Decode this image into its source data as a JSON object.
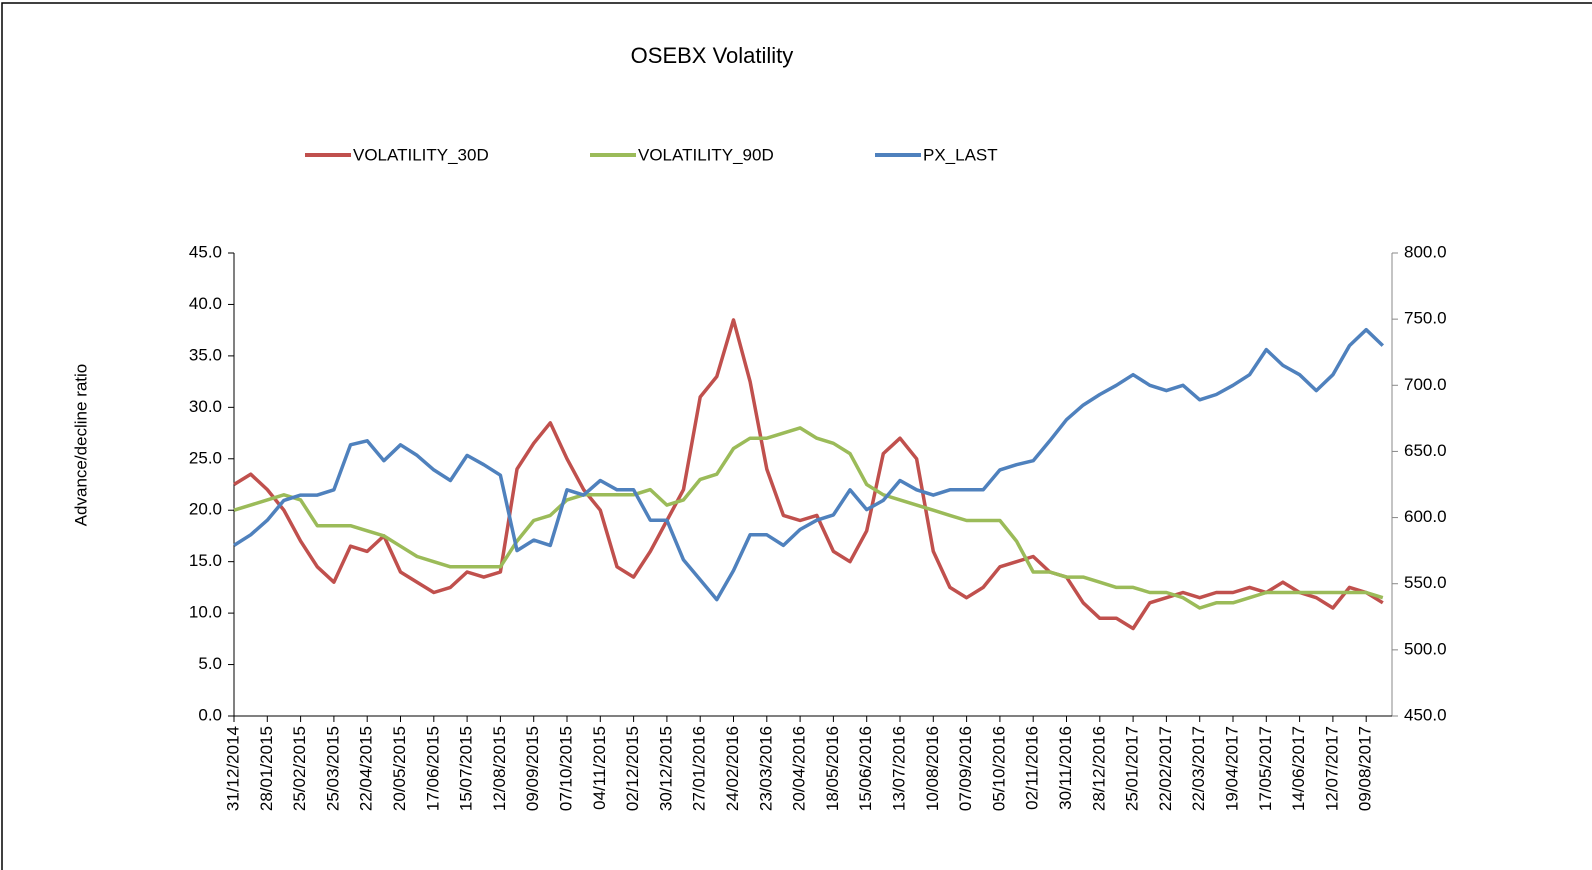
{
  "chart_data": {
    "type": "line",
    "title": "OSEBX Volatility",
    "y_label": "Advance/decline  ratio",
    "categories": [
      "31/12/2014",
      null,
      "28/01/2015",
      null,
      "25/02/2015",
      null,
      "25/03/2015",
      null,
      "22/04/2015",
      null,
      "20/05/2015",
      null,
      "17/06/2015",
      null,
      "15/07/2015",
      null,
      "12/08/2015",
      null,
      "09/09/2015",
      null,
      "07/10/2015",
      null,
      "04/11/2015",
      null,
      "02/12/2015",
      null,
      "30/12/2015",
      null,
      "27/01/2016",
      null,
      "24/02/2016",
      null,
      "23/03/2016",
      null,
      "20/04/2016",
      null,
      "18/05/2016",
      null,
      "15/06/2016",
      null,
      "13/07/2016",
      null,
      "10/08/2016",
      null,
      "07/09/2016",
      null,
      "05/10/2016",
      null,
      "02/11/2016",
      null,
      "30/11/2016",
      null,
      "28/12/2016",
      null,
      "25/01/2017",
      null,
      "22/02/2017",
      null,
      "22/03/2017",
      null,
      "19/04/2017",
      null,
      "17/05/2017",
      null,
      "14/06/2017",
      null,
      "12/07/2017",
      null,
      "09/08/2017",
      null
    ],
    "series": [
      {
        "name": "VOLATILITY_30D",
        "color": "#c0504d",
        "values": [
          22.5,
          23.5,
          22,
          20,
          17,
          14.5,
          13,
          16.5,
          16,
          17.5,
          14,
          13,
          12,
          12.5,
          14,
          13.5,
          14,
          24,
          26.5,
          28.5,
          25,
          22,
          20,
          14.5,
          13.5,
          16,
          19,
          22,
          31,
          33,
          38.5,
          32.5,
          24,
          19.5,
          19,
          19.5,
          16,
          15,
          18,
          25.5,
          27,
          25,
          16,
          12.5,
          11.5,
          12.5,
          14.5,
          15,
          15.5,
          14,
          13.5,
          11,
          9.5,
          9.5,
          8.5,
          11,
          11.5,
          12,
          11.5,
          12,
          12,
          12.5,
          12,
          13,
          12,
          11.5,
          10.5,
          12.5,
          12,
          11
        ]
      },
      {
        "name": "VOLATILITY_90D",
        "color": "#9bbb59",
        "values": [
          20,
          20.5,
          21,
          21.5,
          21,
          18.5,
          18.5,
          18.5,
          18,
          17.5,
          16.5,
          15.5,
          15,
          14.5,
          14.5,
          14.5,
          14.5,
          17,
          19,
          19.5,
          21,
          21.5,
          21.5,
          21.5,
          21.5,
          22,
          20.5,
          21,
          23,
          23.5,
          26,
          27,
          27,
          27.5,
          28,
          27,
          26.5,
          25.5,
          22.5,
          21.5,
          21,
          20.5,
          20,
          19.5,
          19,
          19,
          19,
          17,
          14,
          14,
          13.5,
          13.5,
          13,
          12.5,
          12.5,
          12,
          12,
          11.5,
          10.5,
          11,
          11,
          11.5,
          12,
          12,
          12,
          12,
          12,
          12,
          12,
          11.5
        ]
      },
      {
        "name": "PX_LAST",
        "color": "#4f81bd",
        "axis": "y2",
        "values": [
          579,
          587,
          598,
          613,
          617,
          617,
          621,
          655,
          658,
          643,
          655,
          647,
          636,
          628,
          647,
          640,
          632,
          575,
          583,
          579,
          621,
          617,
          628,
          621,
          621,
          598,
          598,
          568,
          553,
          538,
          560,
          587,
          587,
          579,
          591,
          598,
          602,
          621,
          606,
          613,
          628,
          621,
          617,
          621,
          621,
          621,
          636,
          640,
          643,
          658,
          674,
          685,
          693,
          700,
          708,
          700,
          696,
          700,
          689,
          693,
          700,
          708,
          727,
          715,
          708,
          696,
          708,
          730,
          742,
          730
        ]
      }
    ],
    "ylim": [
      0,
      45
    ],
    "yticks": [
      {
        "value": 0,
        "label": "0.0"
      },
      {
        "value": 5,
        "label": "5.0"
      },
      {
        "value": 10,
        "label": "10.0"
      },
      {
        "value": 15,
        "label": "15.0"
      },
      {
        "value": 20,
        "label": "20.0"
      },
      {
        "value": 25,
        "label": "25.0"
      },
      {
        "value": 30,
        "label": "30.0"
      },
      {
        "value": 35,
        "label": "35.0"
      },
      {
        "value": 40,
        "label": "40.0"
      },
      {
        "value": 45,
        "label": "45.0"
      }
    ],
    "y2lim": [
      450,
      800
    ],
    "y2ticks": [
      {
        "value": 450,
        "label": "450.0"
      },
      {
        "value": 500,
        "label": "500.0"
      },
      {
        "value": 550,
        "label": "550.0"
      },
      {
        "value": 600,
        "label": "600.0"
      },
      {
        "value": 650,
        "label": "650.0"
      },
      {
        "value": 700,
        "label": "700.0"
      },
      {
        "value": 750,
        "label": "750.0"
      },
      {
        "value": 800,
        "label": "800.0"
      }
    ],
    "legend": "top",
    "grid": false
  }
}
